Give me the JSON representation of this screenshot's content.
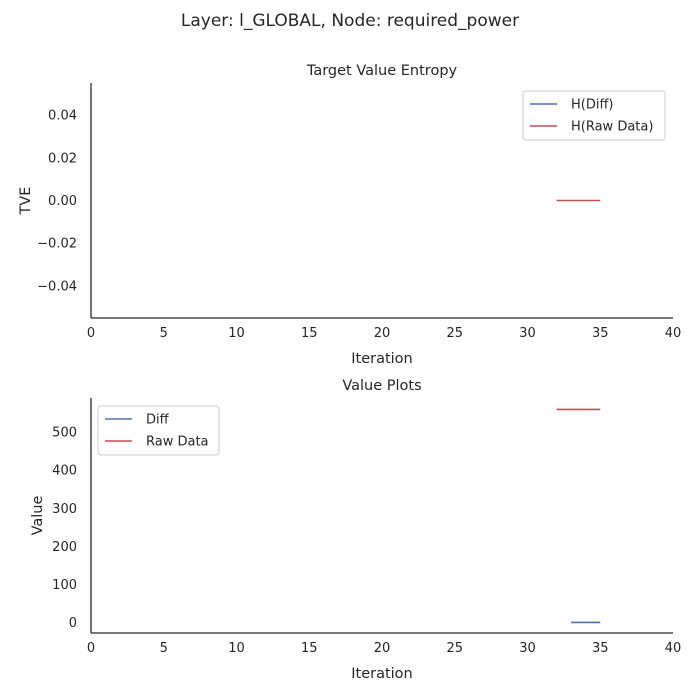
{
  "suptitle": "Layer: l_GLOBAL, Node: required_power",
  "colors": {
    "diff": "#4c72b0",
    "raw": "#c44e52",
    "axis": "#262626"
  },
  "chart_data": [
    {
      "type": "line",
      "title": "Target Value Entropy",
      "xlabel": "Iteration",
      "ylabel": "TVE",
      "xlim": [
        0,
        40
      ],
      "ylim": [
        -0.055,
        0.055
      ],
      "xticks": [
        0,
        5,
        10,
        15,
        20,
        25,
        30,
        35,
        40
      ],
      "xtick_labels": [
        "0",
        "5",
        "10",
        "15",
        "20",
        "25",
        "30",
        "35",
        "40"
      ],
      "yticks": [
        0.04,
        0.02,
        0.0,
        -0.02,
        -0.04
      ],
      "ytick_labels": [
        "0.04",
        "0.02",
        "0.00",
        "−0.02",
        "−0.04"
      ],
      "legend": "top-right",
      "grid": false,
      "series": [
        {
          "name": "H(Diff)",
          "color": "#4c72b0",
          "x": [],
          "y": []
        },
        {
          "name": "H(Raw Data)",
          "color": "#c44e52",
          "x": [
            32,
            33,
            34,
            35
          ],
          "y": [
            0,
            0,
            0,
            0
          ]
        }
      ]
    },
    {
      "type": "line",
      "title": "Value Plots",
      "xlabel": "Iteration",
      "ylabel": "Value",
      "xlim": [
        0,
        40
      ],
      "ylim": [
        -28,
        590
      ],
      "xticks": [
        0,
        5,
        10,
        15,
        20,
        25,
        30,
        35,
        40
      ],
      "xtick_labels": [
        "0",
        "5",
        "10",
        "15",
        "20",
        "25",
        "30",
        "35",
        "40"
      ],
      "yticks": [
        500,
        400,
        300,
        200,
        100,
        0
      ],
      "ytick_labels": [
        "500",
        "400",
        "300",
        "200",
        "100",
        "0"
      ],
      "legend": "top-left",
      "grid": false,
      "series": [
        {
          "name": "Diff",
          "color": "#4c72b0",
          "x": [
            33,
            34,
            35
          ],
          "y": [
            0,
            0,
            0
          ]
        },
        {
          "name": "Raw Data",
          "color": "#c44e52",
          "x": [
            32,
            33,
            34,
            35
          ],
          "y": [
            560,
            560,
            560,
            560
          ]
        }
      ]
    }
  ]
}
